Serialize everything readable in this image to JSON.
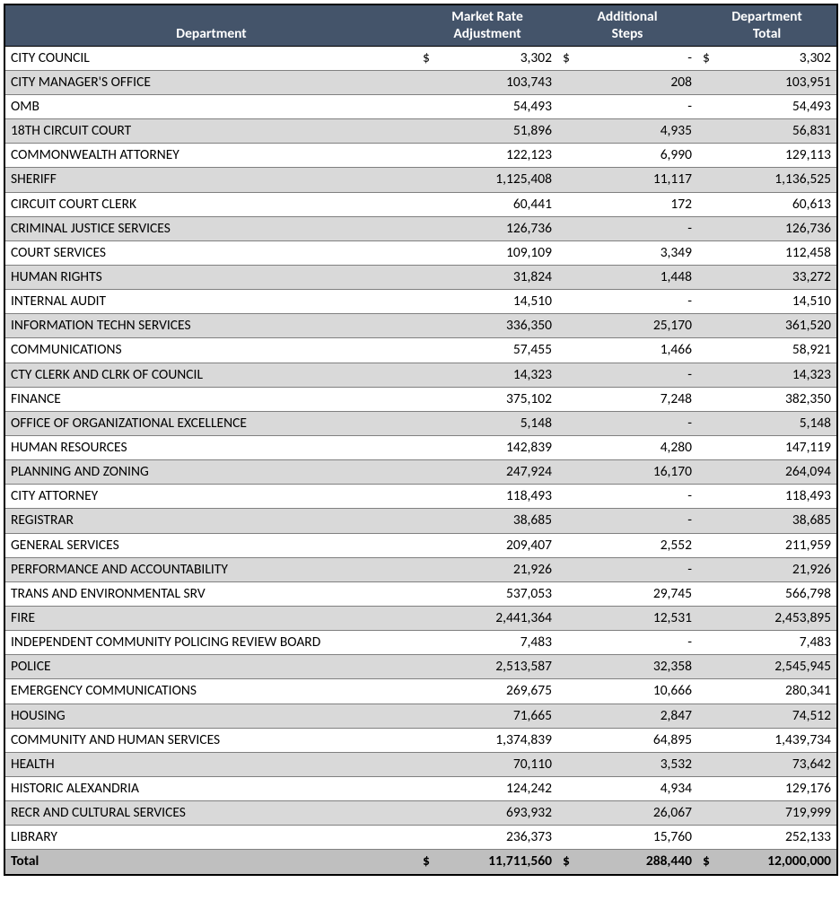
{
  "table": {
    "header_bg": "#44546a",
    "header_fg": "#ffffff",
    "alt_row_bg": "#d9d9d9",
    "total_row_bg": "#bfbfbf",
    "border_color": "#000000",
    "row_border_color": "#808080",
    "font_family": "Calibri",
    "body_fontsize": 15.5,
    "header_fontsize": 15.5,
    "columns": [
      {
        "label": "Department",
        "align": "center"
      },
      {
        "label": "Market Rate Adjustment",
        "align": "center"
      },
      {
        "label": "Additional Steps",
        "align": "center"
      },
      {
        "label": "Department Total",
        "align": "center"
      }
    ],
    "currency_symbol": "$",
    "rows": [
      {
        "dept": "CITY COUNCIL",
        "mra": "3,302",
        "add": "-",
        "tot": "3,302",
        "show_currency": true
      },
      {
        "dept": "CITY MANAGER'S OFFICE",
        "mra": "103,743",
        "add": "208",
        "tot": "103,951"
      },
      {
        "dept": "OMB",
        "mra": "54,493",
        "add": "-",
        "tot": "54,493"
      },
      {
        "dept": "18TH CIRCUIT COURT",
        "mra": "51,896",
        "add": "4,935",
        "tot": "56,831"
      },
      {
        "dept": "COMMONWEALTH ATTORNEY",
        "mra": "122,123",
        "add": "6,990",
        "tot": "129,113"
      },
      {
        "dept": "SHERIFF",
        "mra": "1,125,408",
        "add": "11,117",
        "tot": "1,136,525"
      },
      {
        "dept": "CIRCUIT COURT CLERK",
        "mra": "60,441",
        "add": "172",
        "tot": "60,613"
      },
      {
        "dept": "CRIMINAL JUSTICE SERVICES",
        "mra": "126,736",
        "add": "-",
        "tot": "126,736"
      },
      {
        "dept": "COURT SERVICES",
        "mra": "109,109",
        "add": "3,349",
        "tot": "112,458"
      },
      {
        "dept": "HUMAN RIGHTS",
        "mra": "31,824",
        "add": "1,448",
        "tot": "33,272"
      },
      {
        "dept": "INTERNAL AUDIT",
        "mra": "14,510",
        "add": "-",
        "tot": "14,510"
      },
      {
        "dept": "INFORMATION TECHN SERVICES",
        "mra": "336,350",
        "add": "25,170",
        "tot": "361,520"
      },
      {
        "dept": "COMMUNICATIONS",
        "mra": "57,455",
        "add": "1,466",
        "tot": "58,921"
      },
      {
        "dept": "CTY CLERK AND CLRK OF COUNCIL",
        "mra": "14,323",
        "add": "-",
        "tot": "14,323"
      },
      {
        "dept": "FINANCE",
        "mra": "375,102",
        "add": "7,248",
        "tot": "382,350"
      },
      {
        "dept": "OFFICE OF ORGANIZATIONAL EXCELLENCE",
        "mra": "5,148",
        "add": "-",
        "tot": "5,148"
      },
      {
        "dept": "HUMAN RESOURCES",
        "mra": "142,839",
        "add": "4,280",
        "tot": "147,119"
      },
      {
        "dept": "PLANNING AND ZONING",
        "mra": "247,924",
        "add": "16,170",
        "tot": "264,094"
      },
      {
        "dept": "CITY ATTORNEY",
        "mra": "118,493",
        "add": "-",
        "tot": "118,493"
      },
      {
        "dept": "REGISTRAR",
        "mra": "38,685",
        "add": "-",
        "tot": "38,685"
      },
      {
        "dept": "GENERAL SERVICES",
        "mra": "209,407",
        "add": "2,552",
        "tot": "211,959"
      },
      {
        "dept": "PERFORMANCE AND ACCOUNTABILITY",
        "mra": "21,926",
        "add": "-",
        "tot": "21,926"
      },
      {
        "dept": "TRANS AND ENVIRONMENTAL SRV",
        "mra": "537,053",
        "add": "29,745",
        "tot": "566,798"
      },
      {
        "dept": "FIRE",
        "mra": "2,441,364",
        "add": "12,531",
        "tot": "2,453,895"
      },
      {
        "dept": "INDEPENDENT COMMUNITY POLICING REVIEW BOARD",
        "mra": "7,483",
        "add": "-",
        "tot": "7,483"
      },
      {
        "dept": "POLICE",
        "mra": "2,513,587",
        "add": "32,358",
        "tot": "2,545,945"
      },
      {
        "dept": "EMERGENCY COMMUNICATIONS",
        "mra": "269,675",
        "add": "10,666",
        "tot": "280,341"
      },
      {
        "dept": "HOUSING",
        "mra": "71,665",
        "add": "2,847",
        "tot": "74,512"
      },
      {
        "dept": "COMMUNITY AND HUMAN SERVICES",
        "mra": "1,374,839",
        "add": "64,895",
        "tot": "1,439,734"
      },
      {
        "dept": "HEALTH",
        "mra": "70,110",
        "add": "3,532",
        "tot": "73,642"
      },
      {
        "dept": "HISTORIC ALEXANDRIA",
        "mra": "124,242",
        "add": "4,934",
        "tot": "129,176"
      },
      {
        "dept": "RECR AND CULTURAL SERVICES",
        "mra": "693,932",
        "add": "26,067",
        "tot": "719,999"
      },
      {
        "dept": "LIBRARY",
        "mra": "236,373",
        "add": "15,760",
        "tot": "252,133"
      }
    ],
    "total": {
      "label": "Total",
      "mra": "11,711,560",
      "add": "288,440",
      "tot": "12,000,000",
      "show_currency": true
    }
  }
}
